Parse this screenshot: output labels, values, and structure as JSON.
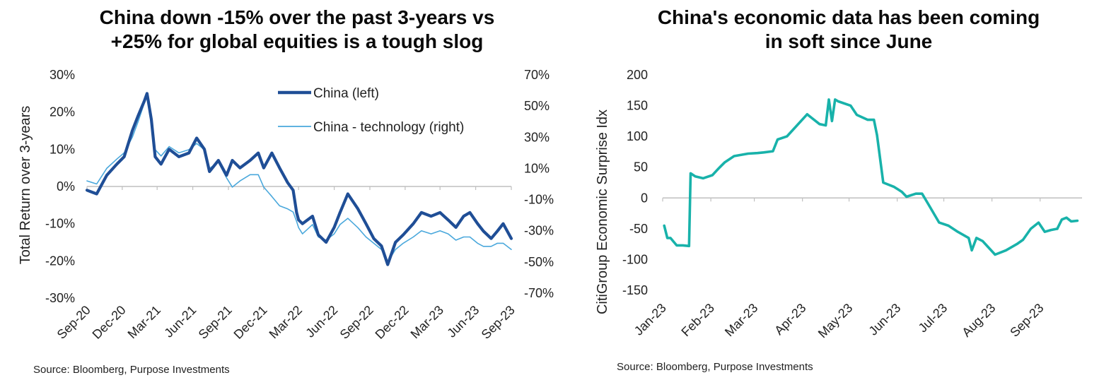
{
  "left": {
    "title_line1": "China down -15% over the past 3-years vs",
    "title_line2": "+25% for global equities is a tough slog",
    "ylabel": "Total Return over 3-years",
    "source": "Source: Bloomberg, Purpose Investments"
  },
  "right": {
    "title_line1": "China's economic data has been coming",
    "title_line2": "in soft since June",
    "ylabel": "CitiGroup Economic Surprise Idx",
    "source": "Source: Bloomberg, Purpose Investments"
  },
  "colors": {
    "china": "#1f4e96",
    "tech": "#4aa8dc",
    "cesi": "#18b2aa"
  },
  "chart_data": [
    {
      "type": "line",
      "title": "China down -15% over the past 3-years vs +25% for global equities is a tough slog",
      "ylabel": "Total Return over 3-years",
      "y2label": "",
      "categories": [
        "Sep-20",
        "Dec-20",
        "Mar-21",
        "Jun-21",
        "Sep-21",
        "Dec-21",
        "Mar-22",
        "Jun-22",
        "Sep-22",
        "Dec-22",
        "Mar-23",
        "Jun-23",
        "Sep-23"
      ],
      "ylim": [
        -30,
        30
      ],
      "y_ticks": [
        "30%",
        "20%",
        "10%",
        "0%",
        "-10%",
        "-20%",
        "-30%"
      ],
      "y2lim": [
        -70,
        70
      ],
      "y2_ticks": [
        "70%",
        "50%",
        "30%",
        "10%",
        "-10%",
        "-30%",
        "-50%",
        "-70%"
      ],
      "legend_position": "top-right",
      "grid": false,
      "series": [
        {
          "name": "China (left)",
          "axis": "left",
          "x": [
            "2020-09-15",
            "2020-10-10",
            "2020-11-05",
            "2020-12-01",
            "2020-12-20",
            "2021-01-10",
            "2021-01-25",
            "2021-02-10",
            "2021-02-17",
            "2021-02-28",
            "2021-03-10",
            "2021-03-25",
            "2021-04-15",
            "2021-05-10",
            "2021-06-05",
            "2021-06-25",
            "2021-07-15",
            "2021-07-28",
            "2021-08-20",
            "2021-09-10",
            "2021-09-25",
            "2021-10-15",
            "2021-11-10",
            "2021-12-01",
            "2021-12-15",
            "2022-01-05",
            "2022-01-25",
            "2022-02-15",
            "2022-03-01",
            "2022-03-10",
            "2022-03-15",
            "2022-03-25",
            "2022-04-20",
            "2022-05-05",
            "2022-05-25",
            "2022-06-15",
            "2022-06-30",
            "2022-07-20",
            "2022-08-15",
            "2022-09-05",
            "2022-09-25",
            "2022-10-15",
            "2022-10-31",
            "2022-11-20",
            "2022-12-10",
            "2023-01-05",
            "2023-01-26",
            "2023-02-20",
            "2023-03-15",
            "2023-04-05",
            "2023-04-25",
            "2023-05-15",
            "2023-05-31",
            "2023-06-20",
            "2023-07-05",
            "2023-07-25",
            "2023-08-10",
            "2023-08-25",
            "2023-09-15"
          ],
          "values": [
            -1,
            -2,
            3,
            6,
            8,
            15,
            19,
            23,
            25,
            18,
            8,
            6,
            10,
            8,
            9,
            13,
            10,
            4,
            7,
            3,
            7,
            5,
            7,
            9,
            5,
            9,
            5,
            1,
            -1,
            -7,
            -9,
            -10,
            -8,
            -13,
            -15,
            -11,
            -7,
            -2,
            -6,
            -10,
            -14,
            -16,
            -21,
            -15,
            -13,
            -10,
            -7,
            -8,
            -7,
            -9,
            -11,
            -8,
            -7,
            -10,
            -12,
            -14,
            -12,
            -10,
            -14
          ]
        },
        {
          "name": "China - technology (right)",
          "axis": "right",
          "x": [
            "2020-09-15",
            "2020-10-10",
            "2020-11-05",
            "2020-12-01",
            "2020-12-20",
            "2021-01-10",
            "2021-01-25",
            "2021-02-10",
            "2021-02-17",
            "2021-02-28",
            "2021-03-10",
            "2021-03-25",
            "2021-04-15",
            "2021-05-10",
            "2021-06-05",
            "2021-06-25",
            "2021-07-15",
            "2021-07-28",
            "2021-08-20",
            "2021-09-10",
            "2021-09-25",
            "2021-10-15",
            "2021-11-10",
            "2021-12-01",
            "2021-12-15",
            "2022-01-05",
            "2022-01-25",
            "2022-02-15",
            "2022-03-01",
            "2022-03-10",
            "2022-03-15",
            "2022-03-25",
            "2022-04-20",
            "2022-05-05",
            "2022-05-25",
            "2022-06-15",
            "2022-06-30",
            "2022-07-20",
            "2022-08-15",
            "2022-09-05",
            "2022-09-25",
            "2022-10-15",
            "2022-10-31",
            "2022-11-20",
            "2022-12-10",
            "2023-01-05",
            "2023-01-26",
            "2023-02-20",
            "2023-03-15",
            "2023-04-05",
            "2023-04-25",
            "2023-05-15",
            "2023-05-31",
            "2023-06-20",
            "2023-07-05",
            "2023-07-25",
            "2023-08-10",
            "2023-08-25",
            "2023-09-15"
          ],
          "values": [
            2,
            0,
            10,
            16,
            20,
            30,
            40,
            52,
            58,
            44,
            22,
            18,
            24,
            20,
            22,
            26,
            22,
            10,
            14,
            4,
            -2,
            2,
            6,
            6,
            -2,
            -8,
            -14,
            -16,
            -18,
            -24,
            -28,
            -32,
            -26,
            -34,
            -36,
            -32,
            -26,
            -22,
            -28,
            -34,
            -38,
            -42,
            -50,
            -42,
            -38,
            -34,
            -30,
            -32,
            -30,
            -32,
            -36,
            -34,
            -34,
            -38,
            -40,
            -40,
            -38,
            -38,
            -42
          ]
        }
      ]
    },
    {
      "type": "line",
      "title": "China's economic data has been coming in soft since June",
      "ylabel": "CitiGroup Economic Surprise Idx",
      "categories": [
        "Jan-23",
        "Feb-23",
        "Mar-23",
        "Apr-23",
        "May-23",
        "Jun-23",
        "Jul-23",
        "Aug-23",
        "Sep-23"
      ],
      "ylim": [
        -150,
        200
      ],
      "y_ticks": [
        "200",
        "150",
        "100",
        "50",
        "0",
        "-50",
        "-100",
        "-150"
      ],
      "grid": false,
      "series": [
        {
          "name": "",
          "x": [
            "2023-01-02",
            "2023-01-04",
            "2023-01-06",
            "2023-01-10",
            "2023-01-14",
            "2023-01-18",
            "2023-01-19",
            "2023-01-22",
            "2023-01-27",
            "2023-02-02",
            "2023-02-06",
            "2023-02-10",
            "2023-02-16",
            "2023-02-25",
            "2023-03-03",
            "2023-03-07",
            "2023-03-13",
            "2023-03-16",
            "2023-03-22",
            "2023-04-04",
            "2023-04-07",
            "2023-04-12",
            "2023-04-16",
            "2023-04-18",
            "2023-04-20",
            "2023-04-22",
            "2023-04-24",
            "2023-05-02",
            "2023-05-06",
            "2023-05-13",
            "2023-05-17",
            "2023-05-19",
            "2023-05-23",
            "2023-05-30",
            "2023-06-04",
            "2023-06-07",
            "2023-06-13",
            "2023-06-17",
            "2023-06-21",
            "2023-06-28",
            "2023-07-04",
            "2023-07-10",
            "2023-07-17",
            "2023-07-19",
            "2023-07-22",
            "2023-07-26",
            "2023-08-03",
            "2023-08-10",
            "2023-08-17",
            "2023-08-21",
            "2023-08-26",
            "2023-08-31",
            "2023-09-04",
            "2023-09-08",
            "2023-09-12"
          ],
          "values": [
            -45,
            -65,
            -65,
            -77,
            -77,
            -78,
            40,
            35,
            32,
            37,
            48,
            58,
            68,
            72,
            73,
            74,
            76,
            95,
            100,
            136,
            130,
            120,
            118,
            160,
            125,
            160,
            157,
            150,
            135,
            127,
            127,
            102,
            25,
            18,
            10,
            2,
            7,
            7,
            -10,
            -40,
            -45,
            -55,
            -65,
            -85,
            -65,
            -70,
            -92,
            -85,
            -75,
            -68,
            -50,
            -40,
            -55,
            -52,
            -50
          ]
        },
        {
          "name": "",
          "x": [
            "2023-09-12",
            "2023-09-15",
            "2023-09-18",
            "2023-09-21",
            "2023-09-25"
          ],
          "values": [
            -50,
            -35,
            -32,
            -38,
            -37
          ]
        }
      ]
    }
  ]
}
